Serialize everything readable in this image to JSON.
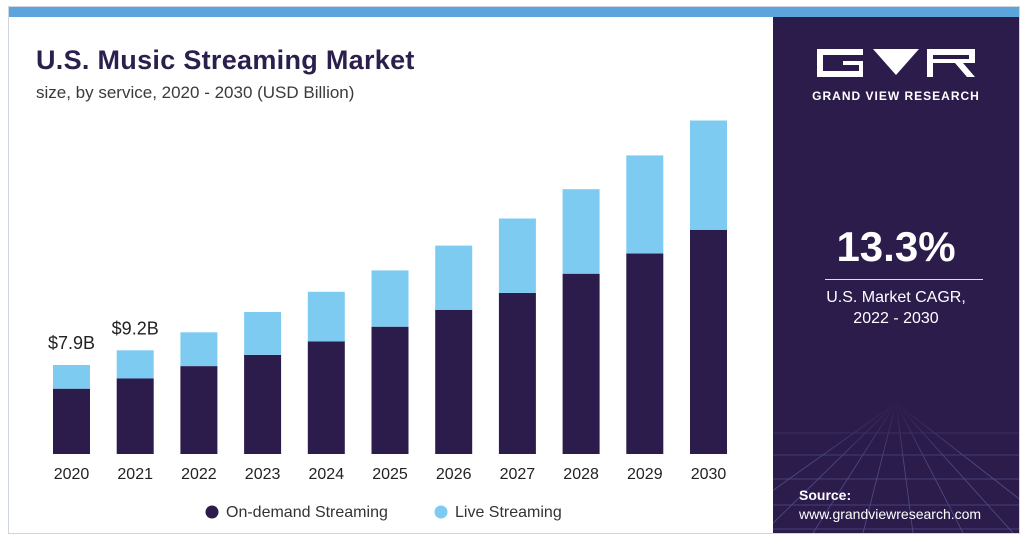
{
  "chart_data": {
    "type": "bar",
    "stacked": true,
    "title": "U.S. Music Streaming Market",
    "subtitle": "size, by service, 2020 - 2030 (USD Billion)",
    "categories": [
      "2020",
      "2021",
      "2022",
      "2023",
      "2024",
      "2025",
      "2026",
      "2027",
      "2028",
      "2029",
      "2030"
    ],
    "series": [
      {
        "name": "On-demand Streaming",
        "color": "#2c1c4c",
        "values": [
          5.8,
          6.7,
          7.8,
          8.8,
          10.0,
          11.3,
          12.8,
          14.3,
          16.0,
          17.8,
          19.9
        ]
      },
      {
        "name": "Live Streaming",
        "color": "#7ecbf1",
        "values": [
          2.1,
          2.5,
          3.0,
          3.8,
          4.4,
          5.0,
          5.7,
          6.6,
          7.5,
          8.7,
          9.7
        ]
      }
    ],
    "data_labels": [
      {
        "category": "2020",
        "text": "$7.9B"
      },
      {
        "category": "2021",
        "text": "$9.2B"
      }
    ],
    "ylim": [
      0,
      30
    ],
    "grid": false,
    "legend": "bottom",
    "xlabel": "",
    "ylabel": ""
  },
  "brand": {
    "name": "GRAND VIEW RESEARCH"
  },
  "cagr": {
    "value": "13.3%",
    "label_line1": "U.S. Market CAGR,",
    "label_line2": "2022 - 2030"
  },
  "source": {
    "label": "Source:",
    "url": "www.grandviewresearch.com"
  }
}
